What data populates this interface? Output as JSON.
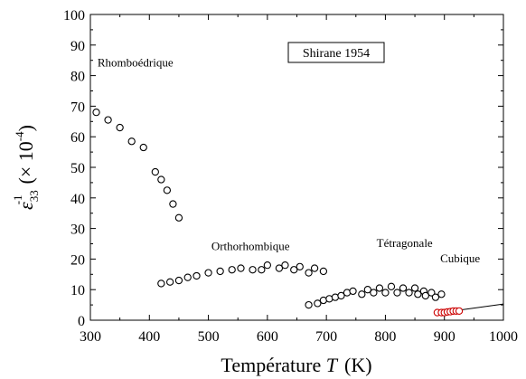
{
  "chart_data": {
    "type": "scatter",
    "xlabel_prefix": "Température ",
    "xlabel_var": "T",
    "xlabel_unit": "(K)",
    "ylabel_eps": "ε",
    "ylabel_sub": "33",
    "ylabel_sup": "-1",
    "ylabel_rest_open": "(× 10",
    "ylabel_rest_sup": "-4",
    "ylabel_rest_close": ")",
    "xlim": [
      300,
      1000
    ],
    "ylim": [
      0,
      100
    ],
    "x_ticks": [
      300,
      400,
      500,
      600,
      700,
      800,
      900,
      1000
    ],
    "y_ticks": [
      0,
      10,
      20,
      30,
      40,
      50,
      60,
      70,
      80,
      90,
      100
    ],
    "legend_box": "Shirane 1954",
    "phase_labels": [
      {
        "text": "Rhomboédrique",
        "x": 312,
        "y": 83
      },
      {
        "text": "Orthorhombique",
        "x": 505,
        "y": 23
      },
      {
        "text": "Tétragonale",
        "x": 785,
        "y": 24
      },
      {
        "text": "Cubique",
        "x": 893,
        "y": 19
      }
    ],
    "series": [
      {
        "marker": "open-circle",
        "color": "#000000",
        "points": [
          [
            310,
            68
          ],
          [
            330,
            65.5
          ],
          [
            350,
            63
          ],
          [
            370,
            58.5
          ],
          [
            390,
            56.5
          ],
          [
            410,
            48.5
          ],
          [
            420,
            46
          ],
          [
            430,
            42.5
          ],
          [
            440,
            38
          ],
          [
            450,
            33.5
          ],
          [
            420,
            12
          ],
          [
            435,
            12.5
          ],
          [
            450,
            13
          ],
          [
            465,
            14
          ],
          [
            480,
            14.5
          ],
          [
            500,
            15.5
          ],
          [
            520,
            16
          ],
          [
            540,
            16.5
          ],
          [
            555,
            17
          ],
          [
            575,
            16.5
          ],
          [
            590,
            16.5
          ],
          [
            600,
            18
          ],
          [
            620,
            17
          ],
          [
            630,
            18
          ],
          [
            645,
            16.5
          ],
          [
            655,
            17.5
          ],
          [
            670,
            15.5
          ],
          [
            680,
            17
          ],
          [
            695,
            16
          ],
          [
            670,
            5
          ],
          [
            685,
            5.5
          ],
          [
            695,
            6.5
          ],
          [
            705,
            7
          ],
          [
            715,
            7.5
          ],
          [
            725,
            8
          ],
          [
            735,
            9
          ],
          [
            745,
            9.5
          ],
          [
            760,
            8.5
          ],
          [
            770,
            10
          ],
          [
            780,
            9
          ],
          [
            790,
            10.5
          ],
          [
            800,
            9
          ],
          [
            810,
            11
          ],
          [
            820,
            9
          ],
          [
            830,
            10.5
          ],
          [
            840,
            9
          ],
          [
            850,
            10.5
          ],
          [
            855,
            8.5
          ],
          [
            865,
            9.5
          ],
          [
            868,
            8
          ],
          [
            878,
            9
          ],
          [
            885,
            7.5
          ],
          [
            895,
            8.5
          ]
        ]
      },
      {
        "marker": "red-circle",
        "color": "#cc0000",
        "points": [
          [
            888,
            2.5
          ],
          [
            895,
            2.5
          ],
          [
            900,
            2.5
          ],
          [
            905,
            2.7
          ],
          [
            910,
            2.8
          ],
          [
            915,
            3
          ],
          [
            920,
            3
          ],
          [
            925,
            3
          ]
        ]
      }
    ],
    "fit_line": {
      "x": [
        885,
        1000
      ],
      "y": [
        2.2,
        5.3
      ]
    }
  }
}
